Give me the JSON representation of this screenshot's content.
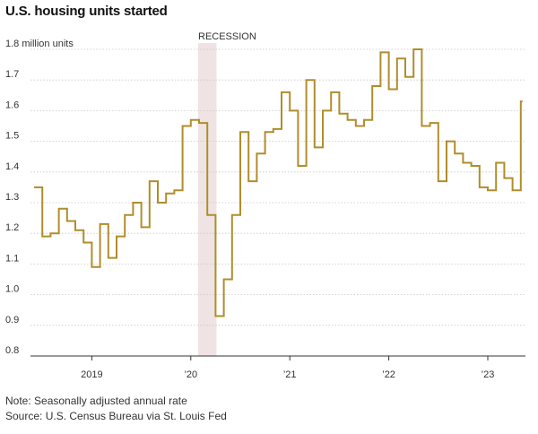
{
  "title": "U.S. housing units started",
  "note": "Note: Seasonally adjusted annual rate",
  "source": "Source: U.S. Census Bureau via St. Louis Fed",
  "colors": {
    "line": "#b08d2c",
    "recession": "#efe3e3",
    "grid": "#c8c8c8",
    "axis": "#333333"
  },
  "chart_data": {
    "type": "line",
    "step": true,
    "ylabel": "million units",
    "ylim": [
      0.8,
      1.8
    ],
    "yticks": [
      0.8,
      0.9,
      1.0,
      1.1,
      1.2,
      1.3,
      1.4,
      1.5,
      1.6,
      1.7,
      1.8
    ],
    "ytick_labels": [
      "0.8",
      "0.9",
      "1.0",
      "1.1",
      "1.2",
      "1.3",
      "1.4",
      "1.5",
      "1.6",
      "1.7",
      "1.8"
    ],
    "xticks": [
      "2019",
      "’20",
      "’21",
      "’22",
      "’23"
    ],
    "grid": true,
    "annotation": {
      "label": "RECESSION",
      "start": "2020-02",
      "end": "2020-04"
    },
    "series": [
      {
        "x": [
          "2018-06",
          "2018-07",
          "2018-08",
          "2018-09",
          "2018-10",
          "2018-11",
          "2018-12",
          "2019-01",
          "2019-02",
          "2019-03",
          "2019-04",
          "2019-05",
          "2019-06",
          "2019-07",
          "2019-08",
          "2019-09",
          "2019-10",
          "2019-11",
          "2019-12",
          "2020-01",
          "2020-02",
          "2020-03",
          "2020-04",
          "2020-05",
          "2020-06",
          "2020-07",
          "2020-08",
          "2020-09",
          "2020-10",
          "2020-11",
          "2020-12",
          "2021-01",
          "2021-02",
          "2021-03",
          "2021-04",
          "2021-05",
          "2021-06",
          "2021-07",
          "2021-08",
          "2021-09",
          "2021-10",
          "2021-11",
          "2021-12",
          "2022-01",
          "2022-02",
          "2022-03",
          "2022-04",
          "2022-05",
          "2022-06",
          "2022-07",
          "2022-08",
          "2022-09",
          "2022-10",
          "2022-11",
          "2022-12",
          "2023-01",
          "2023-02",
          "2023-03",
          "2023-04",
          "2023-05"
        ],
        "values": [
          1.35,
          1.19,
          1.2,
          1.28,
          1.24,
          1.21,
          1.17,
          1.09,
          1.23,
          1.12,
          1.19,
          1.26,
          1.3,
          1.22,
          1.37,
          1.3,
          1.33,
          1.34,
          1.55,
          1.57,
          1.56,
          1.26,
          0.93,
          1.05,
          1.26,
          1.53,
          1.37,
          1.46,
          1.53,
          1.54,
          1.66,
          1.6,
          1.42,
          1.7,
          1.48,
          1.6,
          1.66,
          1.59,
          1.57,
          1.55,
          1.57,
          1.68,
          1.79,
          1.67,
          1.77,
          1.71,
          1.8,
          1.55,
          1.56,
          1.37,
          1.5,
          1.46,
          1.43,
          1.42,
          1.35,
          1.34,
          1.43,
          1.38,
          1.34,
          1.63
        ]
      }
    ]
  }
}
